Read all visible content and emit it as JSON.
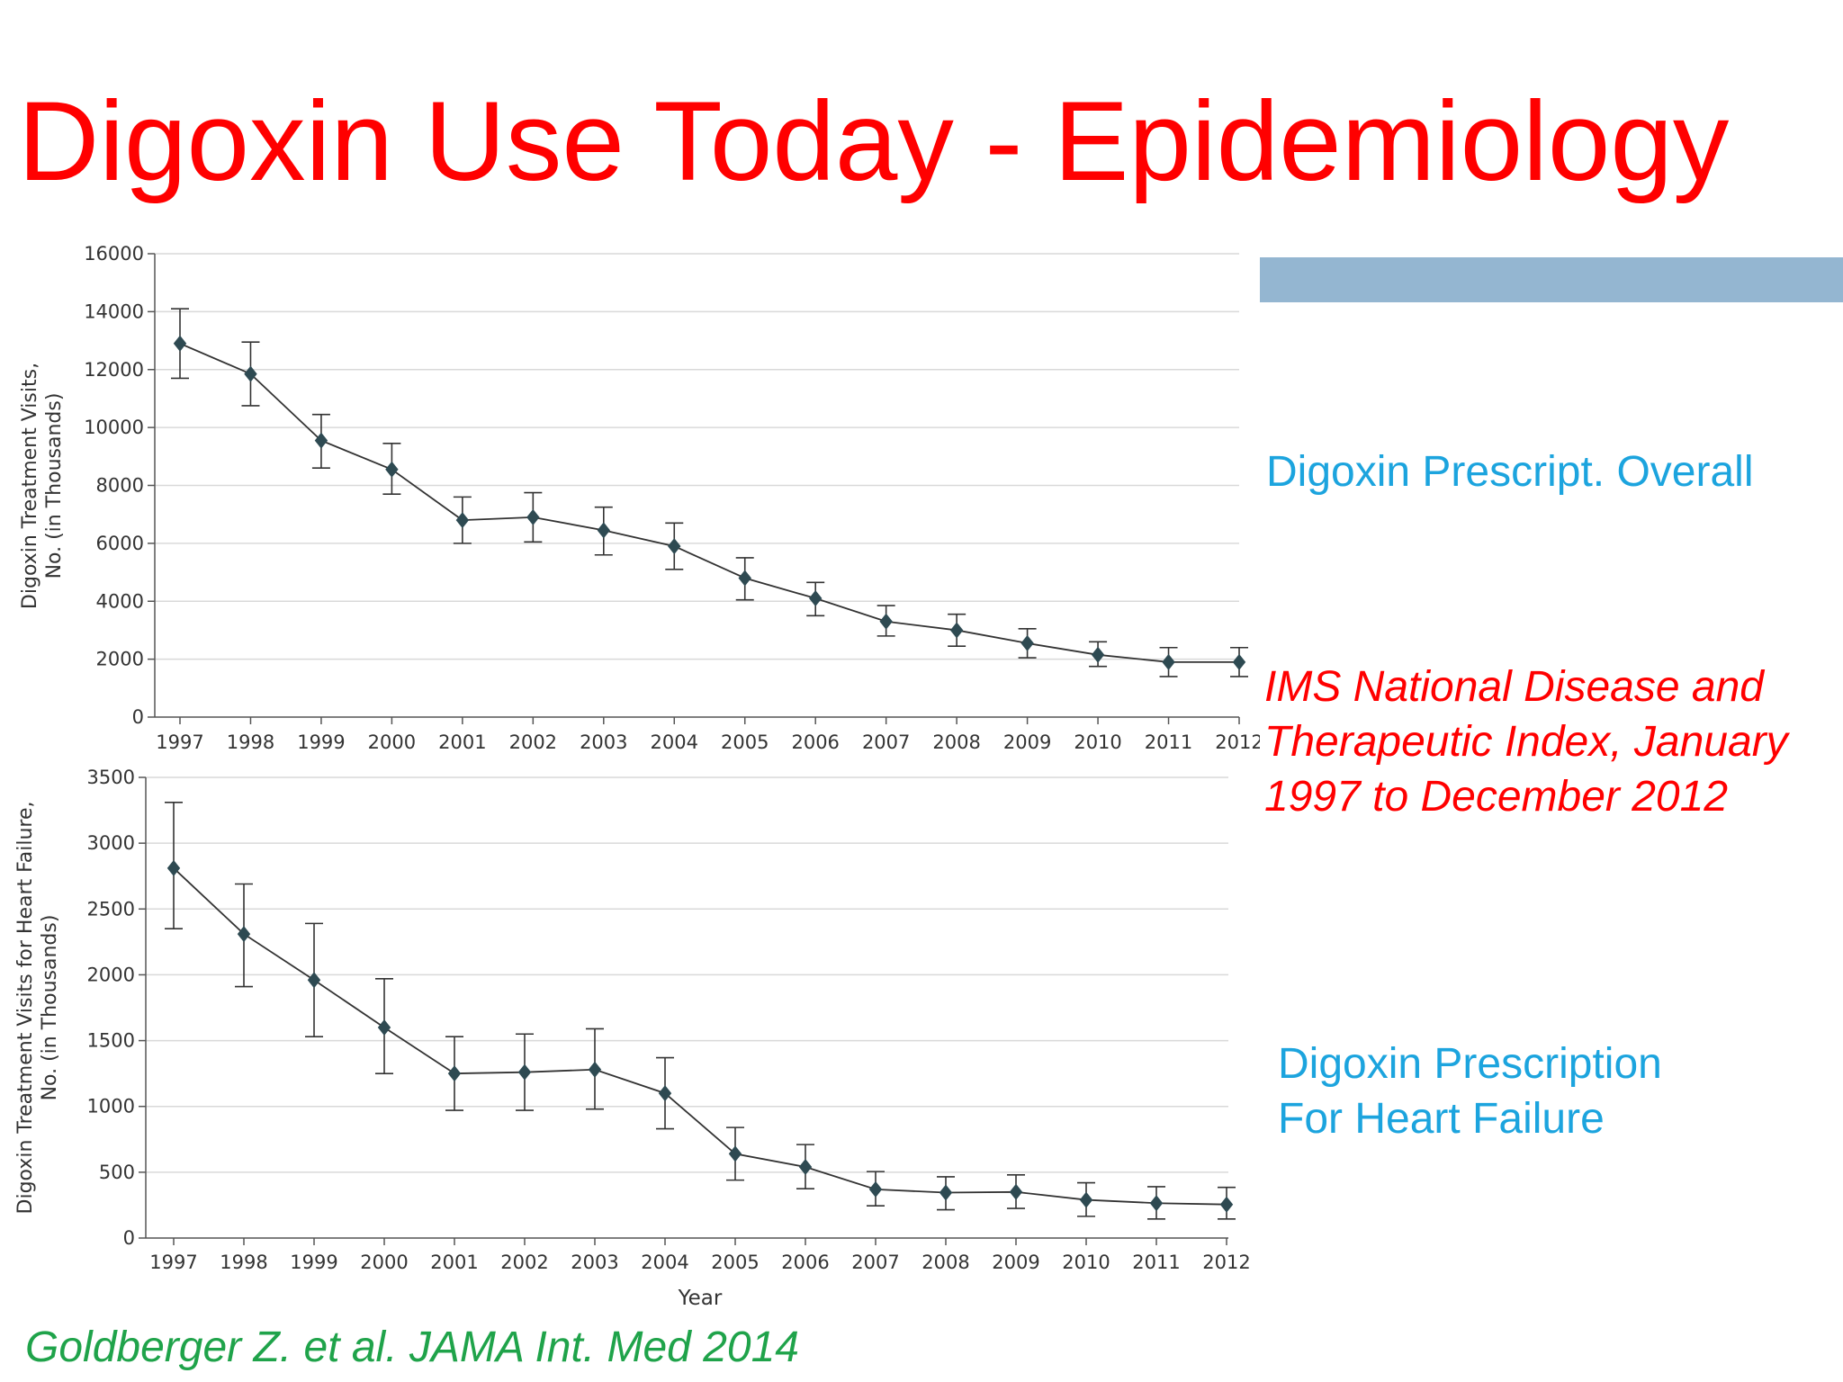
{
  "slide": {
    "title": "Digoxin Use Today - Epidemiology",
    "note_overall": "Digoxin Prescript. Overall",
    "note_ims_lines": [
      "IMS National Disease and",
      "Therapeutic Index, January",
      "1997 to December 2012"
    ],
    "note_hf_lines": [
      "Digoxin Prescription",
      "For Heart Failure"
    ],
    "citation": "Goldberger Z. et al. JAMA Int. Med 2014",
    "colors": {
      "title": "#ff0000",
      "blue_note": "#1ca4de",
      "citation": "#1fa34a",
      "accent_bar": "#94b6d1",
      "marker": "#2e4a52"
    }
  },
  "chart_data": [
    {
      "type": "line",
      "title": "",
      "xlabel": "",
      "ylabel_lines": [
        "Digoxin Treatment Visits,",
        "No. (in Thousands)"
      ],
      "x": [
        1997,
        1998,
        1999,
        2000,
        2001,
        2002,
        2003,
        2004,
        2005,
        2006,
        2007,
        2008,
        2009,
        2010,
        2011,
        2012
      ],
      "values": [
        12900,
        11850,
        9550,
        8550,
        6800,
        6900,
        6450,
        5900,
        4800,
        4100,
        3300,
        3000,
        2550,
        2150,
        1900,
        1900
      ],
      "err_low": [
        11700,
        10750,
        8600,
        7700,
        6000,
        6050,
        5600,
        5100,
        4050,
        3500,
        2800,
        2450,
        2050,
        1750,
        1400,
        1400
      ],
      "err_high": [
        14100,
        12950,
        10450,
        9450,
        7600,
        7750,
        7250,
        6700,
        5500,
        4650,
        3850,
        3550,
        3050,
        2600,
        2400,
        2400
      ],
      "ylim": [
        0,
        16000
      ],
      "yticks": [
        0,
        2000,
        4000,
        6000,
        8000,
        10000,
        12000,
        14000,
        16000
      ],
      "ytick_labels": [
        "0",
        "2000",
        "4000",
        "6000",
        "8000",
        "10000",
        "12000",
        "14000",
        "16000"
      ],
      "grid": true
    },
    {
      "type": "line",
      "title": "",
      "xlabel": "Year",
      "ylabel_lines": [
        "Digoxin Treatment Visits for Heart Failure,",
        "No. (in Thousands)"
      ],
      "x": [
        1997,
        1998,
        1999,
        2000,
        2001,
        2002,
        2003,
        2004,
        2005,
        2006,
        2007,
        2008,
        2009,
        2010,
        2011,
        2012
      ],
      "values": [
        2810,
        2310,
        1960,
        1600,
        1250,
        1260,
        1280,
        1100,
        640,
        540,
        370,
        345,
        350,
        290,
        265,
        255
      ],
      "err_low": [
        2350,
        1910,
        1530,
        1250,
        970,
        970,
        980,
        830,
        440,
        375,
        245,
        215,
        225,
        165,
        145,
        145
      ],
      "err_high": [
        3310,
        2690,
        2390,
        1970,
        1530,
        1550,
        1590,
        1370,
        840,
        710,
        505,
        465,
        480,
        420,
        390,
        385
      ],
      "ylim": [
        0,
        3500
      ],
      "yticks": [
        0,
        500,
        1000,
        1500,
        2000,
        2500,
        3000,
        3500
      ],
      "ytick_labels": [
        "0",
        "500",
        "1000",
        "1500",
        "2000",
        "2500",
        "3000",
        "3500"
      ],
      "grid": true
    }
  ]
}
